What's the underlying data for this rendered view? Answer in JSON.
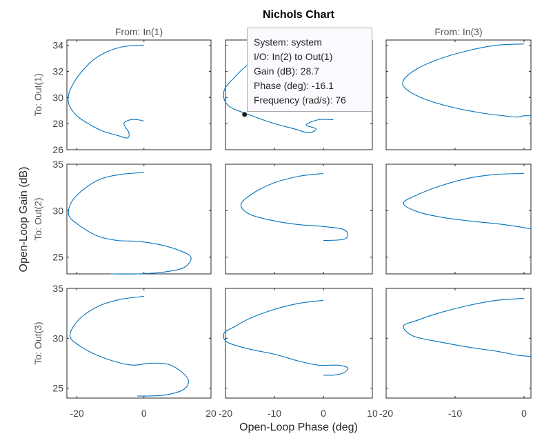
{
  "chart_data": {
    "type": "line",
    "title": "Nichols Chart",
    "xlabel": "Open-Loop Phase (deg)",
    "ylabel": "Open-Loop Gain (dB)",
    "column_titles": [
      "From: In(1)",
      "",
      "From: In(3)"
    ],
    "row_titles": [
      "To: Out(1)",
      "To: Out(2)",
      "To: Out(3)"
    ],
    "grid": false,
    "columns": [
      {
        "xlim": [
          -23,
          20
        ],
        "xticks": [
          -20,
          0,
          20
        ],
        "xticklabels": [
          "-20",
          "0",
          "20"
        ]
      },
      {
        "xlim": [
          -20,
          10
        ],
        "xticks": [
          -20,
          -10,
          0,
          10
        ],
        "xticklabels": [
          "-20",
          "-10",
          "0",
          "10"
        ]
      },
      {
        "xlim": [
          -20,
          1
        ],
        "xticks": [
          -20,
          -10,
          0
        ],
        "xticklabels": [
          "-20",
          "-10",
          "0"
        ]
      }
    ],
    "rows": [
      {
        "ylim": [
          26,
          34.4
        ],
        "yticks": [
          26,
          28,
          30,
          32,
          34
        ],
        "yticklabels": [
          "26",
          "28",
          "30",
          "32",
          "34"
        ]
      },
      {
        "ylim": [
          23.2,
          35
        ],
        "yticks": [
          25,
          30,
          35
        ],
        "yticklabels": [
          "25",
          "30",
          "35"
        ]
      },
      {
        "ylim": [
          24,
          35
        ],
        "yticks": [
          25,
          30,
          35
        ],
        "yticklabels": [
          "25",
          "30",
          "35"
        ]
      }
    ],
    "series_color": "#0072BD",
    "panels": [
      {
        "row": 0,
        "col": 0,
        "x": [
          0,
          -6,
          -11,
          -15,
          -18.5,
          -21,
          -22.5,
          -22.3,
          -20,
          -16,
          -12,
          -8,
          -5,
          -4.5,
          -6,
          -4,
          -2,
          0
        ],
        "y": [
          34.0,
          33.9,
          33.5,
          32.9,
          32.0,
          31.1,
          30.2,
          29.4,
          28.6,
          27.9,
          27.4,
          27.1,
          26.9,
          27.3,
          28.0,
          28.3,
          28.3,
          28.2
        ]
      },
      {
        "row": 1,
        "col": 0,
        "x": [
          0,
          -7,
          -13,
          -18,
          -21.5,
          -22.5,
          -20,
          -14,
          -8,
          -2,
          4,
          10,
          14,
          12,
          6,
          -2,
          -10
        ],
        "y": [
          34.1,
          33.9,
          33.4,
          32.3,
          31.0,
          29.6,
          28.6,
          27.3,
          26.8,
          26.7,
          26.4,
          25.8,
          25.0,
          23.9,
          23.4,
          23.2,
          23.2
        ]
      },
      {
        "row": 2,
        "col": 0,
        "x": [
          0,
          -7,
          -13,
          -18,
          -21,
          -22,
          -19,
          -14,
          -8,
          -3,
          2,
          8,
          13,
          12,
          6,
          -2
        ],
        "y": [
          34.2,
          33.9,
          33.3,
          32.3,
          31.2,
          30.1,
          29.2,
          28.3,
          27.6,
          27.3,
          27.5,
          27.3,
          26.0,
          24.9,
          24.3,
          24.2
        ]
      },
      {
        "row": 0,
        "col": 1,
        "x": [
          0,
          -5,
          -10,
          -15,
          -18,
          -20.3,
          -19.5,
          -15.3,
          -10,
          -6,
          -3,
          -1.5,
          -3.5,
          -1,
          2
        ],
        "y": [
          34.0,
          33.8,
          33.4,
          32.6,
          31.6,
          30.5,
          29.4,
          28.7,
          28.0,
          27.6,
          27.3,
          27.6,
          27.9,
          28.3,
          28.3
        ]
      },
      {
        "row": 1,
        "col": 1,
        "x": [
          0,
          -5,
          -10,
          -14,
          -16.8,
          -15,
          -10,
          -5,
          0,
          4,
          5,
          4,
          0
        ],
        "y": [
          34.0,
          33.7,
          33.0,
          32.0,
          30.7,
          29.6,
          28.9,
          28.5,
          28.3,
          28.0,
          27.4,
          26.9,
          26.8
        ]
      },
      {
        "row": 2,
        "col": 1,
        "x": [
          0,
          -5,
          -10,
          -15,
          -18,
          -20.3,
          -19.6,
          -15,
          -10,
          -5,
          -1,
          3,
          5,
          4,
          2,
          0
        ],
        "y": [
          33.8,
          33.5,
          32.9,
          32.0,
          31.2,
          30.5,
          29.6,
          28.9,
          28.4,
          27.7,
          27.3,
          27.3,
          27.0,
          26.5,
          26.3,
          26.3
        ]
      },
      {
        "row": 0,
        "col": 2,
        "x": [
          0,
          -4,
          -8,
          -12,
          -15.5,
          -17.5,
          -17,
          -14,
          -10,
          -6,
          -3,
          -1,
          0,
          1
        ],
        "y": [
          34.1,
          34.0,
          33.6,
          33.0,
          32.2,
          31.3,
          30.6,
          29.8,
          29.2,
          28.8,
          28.6,
          28.5,
          28.6,
          28.6
        ]
      },
      {
        "row": 1,
        "col": 2,
        "x": [
          0,
          -4,
          -8,
          -12,
          -15.5,
          -17.5,
          -15.5,
          -12,
          -8,
          -4,
          -1,
          0.5,
          1
        ],
        "y": [
          34.0,
          33.9,
          33.5,
          32.7,
          31.7,
          30.8,
          29.9,
          29.3,
          28.9,
          28.6,
          28.3,
          28.1,
          28.1
        ]
      },
      {
        "row": 2,
        "col": 2,
        "x": [
          0,
          -4,
          -8,
          -12,
          -15.5,
          -17.5,
          -16,
          -12,
          -8,
          -4,
          -1,
          0.5,
          1
        ],
        "y": [
          34.0,
          33.8,
          33.3,
          32.6,
          31.8,
          31.2,
          30.2,
          29.6,
          29.1,
          28.7,
          28.3,
          28.2,
          28.2
        ]
      }
    ],
    "datatip": {
      "row": 0,
      "col": 1,
      "x": -16.1,
      "y": 28.7,
      "lines": [
        "System: system",
        "I/O: In(2) to Out(1)",
        "Gain (dB): 28.7",
        "Phase (deg): -16.1",
        "Frequency (rad/s): 76"
      ]
    }
  }
}
